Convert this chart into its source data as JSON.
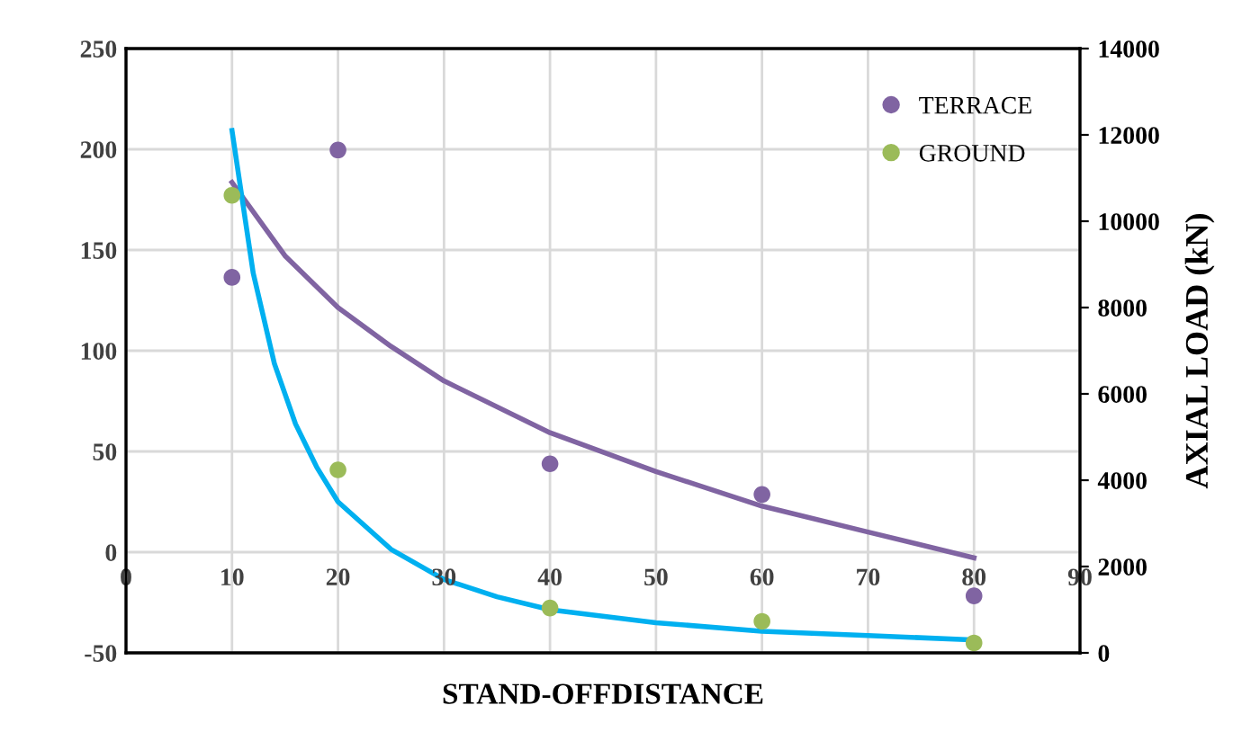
{
  "chart_data": {
    "type": "scatter",
    "xlabel": "STAND-OFFDISTANCE",
    "y2label": "AXIAL LOAD (kN)",
    "xlim": [
      0,
      90
    ],
    "xticks": [
      0,
      10,
      20,
      30,
      40,
      50,
      60,
      70,
      80,
      90
    ],
    "ylim": [
      -50,
      250
    ],
    "yticks": [
      -50,
      0,
      50,
      100,
      150,
      200,
      250
    ],
    "y2lim": [
      0,
      14000
    ],
    "y2ticks": [
      0,
      2000,
      4000,
      6000,
      8000,
      10000,
      12000,
      14000
    ],
    "grid": true,
    "legend": "top right",
    "marker": "circle",
    "series": [
      {
        "name": "TERRACE",
        "color": "#8064a2",
        "axis": "y2",
        "x": [
          10,
          20,
          40,
          60,
          80
        ],
        "values": [
          8700,
          11650,
          4380,
          3670,
          1320
        ]
      },
      {
        "name": "GROUND",
        "color": "#9bbb59",
        "axis": "y2",
        "x": [
          10,
          20,
          40,
          60,
          80
        ],
        "values": [
          10600,
          4240,
          1040,
          730,
          230
        ]
      },
      {
        "type": "line",
        "color": "#8064a2",
        "axis": "y2",
        "marker": "none",
        "x": [
          10,
          15,
          20,
          25,
          30,
          40,
          50,
          60,
          70,
          80
        ],
        "values": [
          10900,
          9200,
          8000,
          7100,
          6300,
          5100,
          4200,
          3400,
          2800,
          2200
        ]
      },
      {
        "type": "line",
        "color": "#00b0f0",
        "axis": "y2",
        "marker": "none",
        "x": [
          10,
          12,
          14,
          16,
          18,
          20,
          25,
          30,
          35,
          40,
          50,
          60,
          70,
          80
        ],
        "values": [
          12100,
          8800,
          6700,
          5300,
          4300,
          3500,
          2400,
          1700,
          1300,
          1000,
          700,
          500,
          400,
          300
        ]
      }
    ]
  }
}
